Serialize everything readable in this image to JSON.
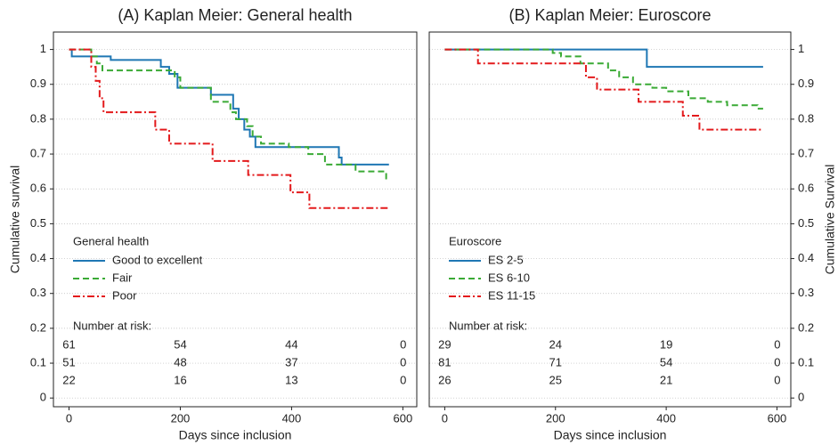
{
  "chart_data": [
    {
      "type": "line",
      "step": "post",
      "title": "(A) Kaplan Meier: General health",
      "x_label": "Days since inclusion",
      "y_label": "Cumulative survival",
      "y_axis_side": "left",
      "xlim": [
        -28,
        625
      ],
      "ylim": [
        -0.025,
        1.05
      ],
      "xticks": [
        0,
        200,
        400,
        600
      ],
      "yticks": [
        0,
        0.1,
        0.2,
        0.3,
        0.4,
        0.5,
        0.6,
        0.7,
        0.8,
        0.9,
        1
      ],
      "grid": true,
      "legend_title": "General health",
      "series": [
        {
          "name": "Good to excellent",
          "color": "#1f77b4",
          "line_style": "solid",
          "x": [
            0,
            5,
            75,
            165,
            180,
            195,
            255,
            295,
            305,
            315,
            325,
            335,
            485,
            490,
            575
          ],
          "values": [
            1,
            0.98,
            0.97,
            0.95,
            0.93,
            0.89,
            0.87,
            0.83,
            0.8,
            0.77,
            0.75,
            0.72,
            0.69,
            0.67,
            0.67
          ]
        },
        {
          "name": "Fair",
          "color": "#3aaa35",
          "line_style": "dashed",
          "x": [
            0,
            40,
            50,
            60,
            190,
            200,
            255,
            290,
            300,
            320,
            330,
            345,
            395,
            430,
            460,
            515,
            570,
            575
          ],
          "values": [
            1,
            0.98,
            0.96,
            0.94,
            0.92,
            0.89,
            0.85,
            0.82,
            0.8,
            0.78,
            0.75,
            0.73,
            0.72,
            0.7,
            0.67,
            0.65,
            0.63,
            0.63
          ]
        },
        {
          "name": "Poor",
          "color": "#e31a1c",
          "line_style": "dashdot",
          "x": [
            0,
            40,
            48,
            55,
            62,
            155,
            180,
            258,
            322,
            398,
            432,
            575
          ],
          "values": [
            1,
            0.95,
            0.91,
            0.86,
            0.82,
            0.77,
            0.73,
            0.68,
            0.64,
            0.59,
            0.545,
            0.545
          ]
        }
      ],
      "risk_table": {
        "title": "Number at risk:",
        "rows": [
          [
            "61",
            "54",
            "44",
            "0"
          ],
          [
            "51",
            "48",
            "37",
            "0"
          ],
          [
            "22",
            "16",
            "13",
            "0"
          ]
        ]
      }
    },
    {
      "type": "line",
      "step": "post",
      "title": "(B) Kaplan Meier: Euroscore",
      "x_label": "Days since inclusion",
      "y_label": "Cumulative Survival",
      "y_axis_side": "right",
      "xlim": [
        -28,
        625
      ],
      "ylim": [
        -0.025,
        1.05
      ],
      "xticks": [
        0,
        200,
        400,
        600
      ],
      "yticks": [
        0,
        0.1,
        0.2,
        0.3,
        0.4,
        0.5,
        0.6,
        0.7,
        0.8,
        0.9,
        1
      ],
      "grid": true,
      "legend_title": "Euroscore",
      "series": [
        {
          "name": "ES 2-5",
          "color": "#1f77b4",
          "line_style": "solid",
          "x": [
            0,
            365,
            575
          ],
          "values": [
            1,
            0.95,
            0.95
          ]
        },
        {
          "name": "ES 6-10",
          "color": "#3aaa35",
          "line_style": "dashed",
          "x": [
            0,
            195,
            210,
            245,
            295,
            315,
            340,
            375,
            400,
            440,
            475,
            510,
            565,
            575
          ],
          "values": [
            1,
            0.99,
            0.98,
            0.96,
            0.94,
            0.92,
            0.9,
            0.89,
            0.88,
            0.86,
            0.85,
            0.84,
            0.83,
            0.83
          ]
        },
        {
          "name": "ES 11-15",
          "color": "#e31a1c",
          "line_style": "dashdot",
          "x": [
            0,
            60,
            255,
            275,
            350,
            430,
            460,
            575
          ],
          "values": [
            1,
            0.96,
            0.92,
            0.885,
            0.85,
            0.81,
            0.77,
            0.77
          ]
        }
      ],
      "risk_table": {
        "title": "Number at risk:",
        "rows": [
          [
            "29",
            "24",
            "19",
            "0"
          ],
          [
            "81",
            "71",
            "54",
            "0"
          ],
          [
            "26",
            "25",
            "21",
            "0"
          ]
        ]
      }
    }
  ]
}
